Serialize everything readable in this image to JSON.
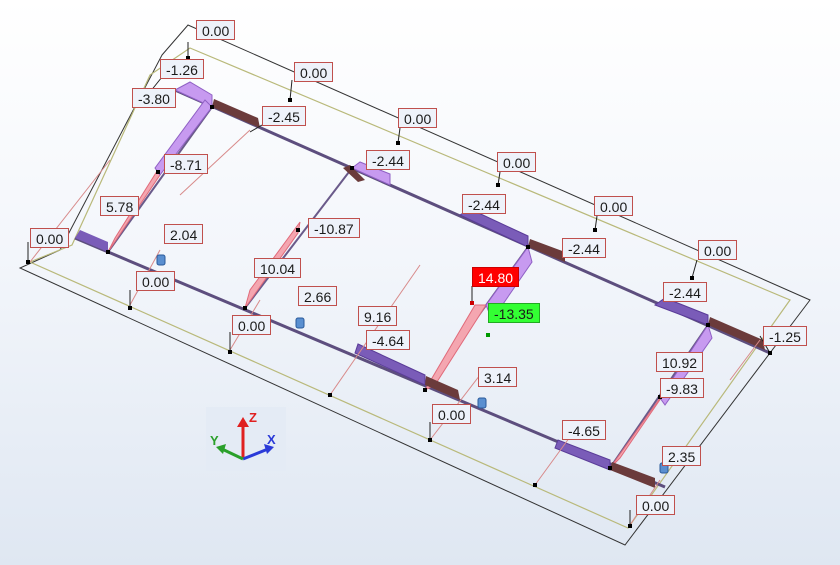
{
  "colors": {
    "frame_outline": "#333333",
    "slab_outline": "#b9b97a",
    "beam": "#6a5a8a",
    "positive_fill": "#f4a6b0",
    "negative_fill": "#c79af0",
    "dark_segment": "#6b3b3b",
    "label_border": "#c0504d",
    "max_label": "#ff0000",
    "min_label": "#33ff33"
  },
  "labels": [
    {
      "text": "0.00"
    },
    {
      "text": "-1.26"
    },
    {
      "text": "-3.80"
    },
    {
      "text": "0.00"
    },
    {
      "text": "-2.45"
    },
    {
      "text": "0.00"
    },
    {
      "text": "-8.71"
    },
    {
      "text": "-2.44"
    },
    {
      "text": "0.00"
    },
    {
      "text": "5.78"
    },
    {
      "text": "-2.44"
    },
    {
      "text": "0.00"
    },
    {
      "text": "2.04"
    },
    {
      "text": "-10.87"
    },
    {
      "text": "0.00"
    },
    {
      "text": "-2.44"
    },
    {
      "text": "0.00"
    },
    {
      "text": "10.04"
    },
    {
      "text": "0.00"
    },
    {
      "text": "-2.44"
    },
    {
      "text": "2.66"
    },
    {
      "text": "14.80"
    },
    {
      "text": "-13.35"
    },
    {
      "text": "0.00"
    },
    {
      "text": "9.16"
    },
    {
      "text": "-1.25"
    },
    {
      "text": "-4.64"
    },
    {
      "text": "10.92"
    },
    {
      "text": "3.14"
    },
    {
      "text": "-9.83"
    },
    {
      "text": "0.00"
    },
    {
      "text": "-4.65"
    },
    {
      "text": "2.35"
    },
    {
      "text": "0.00"
    }
  ],
  "axis": {
    "z": "Z",
    "y": "Y",
    "x": "X"
  }
}
